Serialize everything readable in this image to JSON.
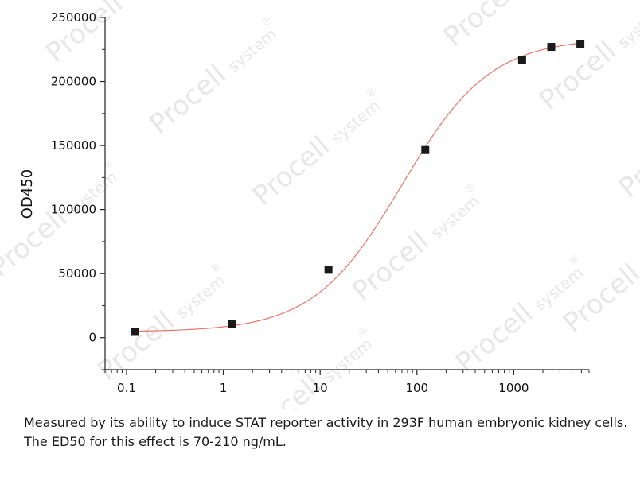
{
  "chart_data": {
    "type": "scatter",
    "xscale": "log",
    "xlim": [
      0.06,
      6000
    ],
    "ylim": [
      -25000,
      250000
    ],
    "ylabel": "OD450",
    "xlabel": "",
    "grid": false,
    "x_ticks": [
      0.1,
      1,
      10,
      100,
      1000
    ],
    "x_tick_labels": [
      "0.1",
      "1",
      "10",
      "100",
      "1000"
    ],
    "y_ticks": [
      0,
      50000,
      100000,
      150000,
      200000,
      250000
    ],
    "y_tick_labels": [
      "0",
      "50000",
      "100000",
      "150000",
      "200000",
      "250000"
    ],
    "series": [
      {
        "points": [
          {
            "x": 0.122,
            "y": 4500
          },
          {
            "x": 1.22,
            "y": 11000
          },
          {
            "x": 12.2,
            "y": 53000
          },
          {
            "x": 122,
            "y": 146500
          },
          {
            "x": 1220,
            "y": 217000
          },
          {
            "x": 2440,
            "y": 227000
          },
          {
            "x": 4880,
            "y": 229500
          }
        ],
        "marker_color": "#1a1a1a"
      }
    ],
    "fit_curve": {
      "type": "4PL",
      "bottom": 4500,
      "top": 234000,
      "ec50": 70,
      "hill": 0.95,
      "color": "#e8746b"
    }
  },
  "watermark": {
    "brand": "Procell",
    "sub": "system",
    "mark": "®"
  },
  "caption": {
    "text": "Measured by its ability to induce STAT reporter activity in 293F human embryonic kidney cells. The ED50 for this effect is 70-210 ng/mL."
  }
}
